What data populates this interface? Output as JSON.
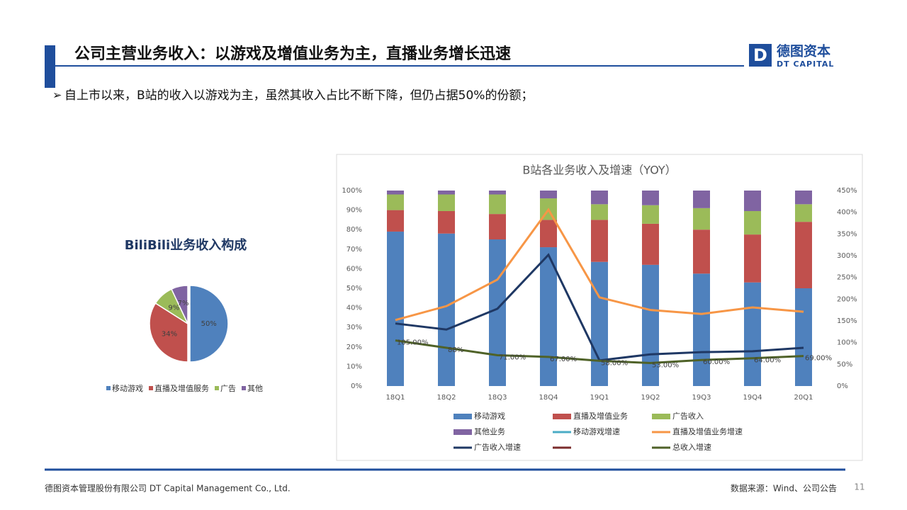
{
  "header": {
    "title": "公司主营业务收入：以游戏及增值业务为主，直播业务增长迅速",
    "logo_cn": "德图资本",
    "logo_en": "DT CAPITAL"
  },
  "bullet": "自上市以来，B站的收入以游戏为主，虽然其收入占比不断下降，但仍占据50%的份额；",
  "footer": {
    "company": "德图资本管理股份有限公司  DT Capital Management  Co., Ltd.",
    "source": "数据来源：Wind、公司公告",
    "page": "11"
  },
  "chart_data": [
    {
      "type": "pie",
      "title": "BiliBili业务收入构成",
      "categories": [
        "移动游戏",
        "直播及增值服务",
        "广告",
        "其他"
      ],
      "values": [
        50,
        34,
        9,
        7
      ],
      "value_labels": [
        "50%",
        "34%",
        "9%",
        "7%"
      ],
      "colors": [
        "#4f81bd",
        "#c0504d",
        "#9bbb59",
        "#8064a2"
      ]
    },
    {
      "type": "combo",
      "title": "B站各业务收入及增速（YOY）",
      "categories": [
        "18Q1",
        "18Q2",
        "18Q3",
        "18Q4",
        "19Q1",
        "19Q2",
        "19Q3",
        "19Q4",
        "20Q1"
      ],
      "ylim": [
        0,
        100
      ],
      "yticks": [
        {
          "value": 0,
          "label": "0%"
        },
        {
          "value": 10,
          "label": "10%"
        },
        {
          "value": 20,
          "label": "20%"
        },
        {
          "value": 30,
          "label": "30%"
        },
        {
          "value": 40,
          "label": "40%"
        },
        {
          "value": 50,
          "label": "50%"
        },
        {
          "value": 60,
          "label": "60%"
        },
        {
          "value": 70,
          "label": "70%"
        },
        {
          "value": 80,
          "label": "80%"
        },
        {
          "value": 90,
          "label": "90%"
        },
        {
          "value": 100,
          "label": "100%"
        }
      ],
      "y2lim": [
        0,
        450
      ],
      "y2ticks": [
        {
          "value": 0,
          "label": "0%"
        },
        {
          "value": 50,
          "label": "50%"
        },
        {
          "value": 100,
          "label": "100%"
        },
        {
          "value": 150,
          "label": "150%"
        },
        {
          "value": 200,
          "label": "200%"
        },
        {
          "value": 250,
          "label": "250%"
        },
        {
          "value": 300,
          "label": "300%"
        },
        {
          "value": 350,
          "label": "350%"
        },
        {
          "value": 400,
          "label": "400%"
        },
        {
          "value": 450,
          "label": "450%"
        }
      ],
      "stacked": true,
      "series": [
        {
          "name": "移动游戏",
          "color": "#4f81bd",
          "values": [
            79,
            78,
            75,
            71,
            63.5,
            62,
            57.5,
            53,
            50
          ]
        },
        {
          "name": "直播及增值业务",
          "color": "#c0504d",
          "values": [
            11,
            11.5,
            13,
            14,
            21.5,
            21,
            22.5,
            24.5,
            34
          ]
        },
        {
          "name": "广告收入",
          "color": "#9bbb59",
          "values": [
            8,
            8.5,
            10,
            11,
            8,
            9.5,
            11,
            12,
            9
          ]
        },
        {
          "name": "其他业务",
          "color": "#8064a2",
          "values": [
            2,
            2,
            2,
            4,
            7,
            7.5,
            9,
            10.5,
            7
          ]
        },
        {
          "name": "移动游戏增速",
          "color": "#4bacc6",
          "axis": "y2",
          "values": [
            null,
            null,
            null,
            null,
            null,
            null,
            null,
            null,
            null
          ]
        },
        {
          "name": "直播及增值业务增速",
          "color": "#f79646",
          "axis": "y2",
          "values": [
            152,
            184,
            245,
            406,
            204,
            175,
            166,
            181,
            171
          ]
        },
        {
          "name": "广告收入增速",
          "color": "#1f3864",
          "axis": "y2",
          "values": [
            144,
            130,
            178,
            302,
            59,
            73,
            78,
            80,
            88
          ]
        },
        {
          "color": "#7b2c2c",
          "axis": "y2",
          "values": [
            null,
            null,
            null,
            null,
            null,
            null,
            null,
            null,
            null
          ]
        },
        {
          "name": "总收入增速",
          "color": "#4f6228",
          "axis": "y2",
          "values": [
            105,
            88,
            71,
            67,
            58,
            53,
            60,
            64,
            69
          ],
          "value_labels": [
            "105.00%",
            "88%",
            "71.00%",
            "67.00%",
            "58.00%",
            "53.00%",
            "60.00%",
            "64.00%",
            "69.00%"
          ]
        }
      ]
    }
  ]
}
